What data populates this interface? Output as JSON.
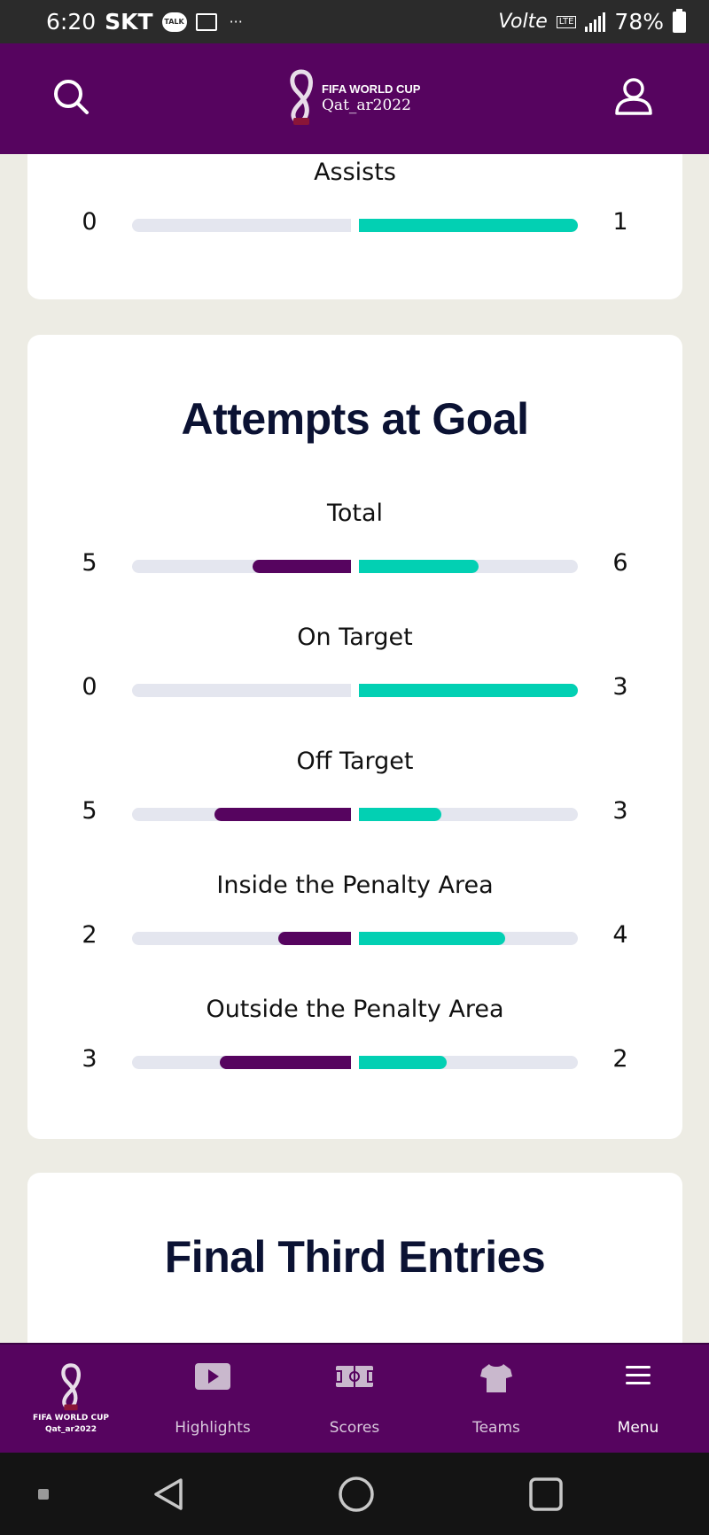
{
  "status_bar": {
    "time": "6:20",
    "carrier": "SKT",
    "talk_badge": "TALK",
    "dots": "···",
    "volte": "Volte",
    "lte": "LTE",
    "battery": "78%"
  },
  "header": {
    "logo_line1": "FIFA WORLD CUP",
    "logo_line2": "Qat_ar2022"
  },
  "assists_card": {
    "label": "Assists",
    "home": "0",
    "away": "1",
    "home_fraction": 0.0,
    "away_fraction": 1.0
  },
  "attempts_card": {
    "title": "Attempts at Goal",
    "stats": [
      {
        "label": "Total",
        "home": "5",
        "away": "6",
        "home_fraction": 0.45,
        "away_fraction": 0.545
      },
      {
        "label": "On Target",
        "home": "0",
        "away": "3",
        "home_fraction": 0.0,
        "away_fraction": 1.0
      },
      {
        "label": "Off Target",
        "home": "5",
        "away": "3",
        "home_fraction": 0.625,
        "away_fraction": 0.375
      },
      {
        "label": "Inside the Penalty Area",
        "home": "2",
        "away": "4",
        "home_fraction": 0.333,
        "away_fraction": 0.667
      },
      {
        "label": "Outside the Penalty Area",
        "home": "3",
        "away": "2",
        "home_fraction": 0.6,
        "away_fraction": 0.4
      }
    ]
  },
  "final_third_card": {
    "title": "Final Third Entries"
  },
  "bottom_nav": {
    "logo_line1": "FIFA WORLD CUP",
    "logo_line2": "Qat_ar2022",
    "items": [
      {
        "label": "Highlights",
        "icon": "play-icon"
      },
      {
        "label": "Scores",
        "icon": "pitch-icon"
      },
      {
        "label": "Teams",
        "icon": "shirt-icon"
      },
      {
        "label": "Menu",
        "icon": "hamburger-icon"
      }
    ]
  },
  "colors": {
    "brand": "#56045f",
    "away_bar": "#02d0b3",
    "track": "#e4e6ef",
    "page_bg": "#edece4"
  }
}
